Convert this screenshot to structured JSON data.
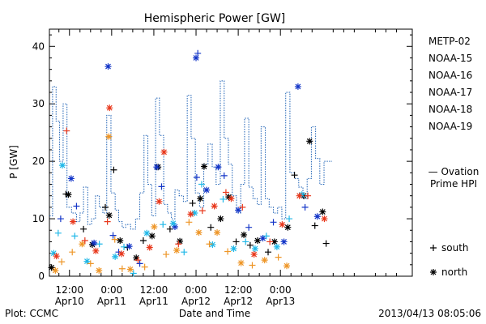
{
  "chart_data": {
    "type": "scatter",
    "title": "Hemispheric Power [GW]",
    "ylabel": "P [GW]",
    "xlabel": "Date and Time",
    "ylim": [
      0,
      43
    ],
    "yticks": [
      0,
      10,
      20,
      30,
      40
    ],
    "x_unit": "hours since 2013-04-09 00:00 UT",
    "xlim": [
      6.3,
      109.5
    ],
    "xticks": [
      {
        "x": 12,
        "time": "12:00",
        "date": "Apr10"
      },
      {
        "x": 24,
        "time": "0:00",
        "date": "Apr11"
      },
      {
        "x": 36,
        "time": "12:00",
        "date": "Apr11"
      },
      {
        "x": 48,
        "time": "0:00",
        "date": "Apr12"
      },
      {
        "x": 60,
        "time": "12:00",
        "date": "Apr12"
      },
      {
        "x": 72,
        "time": "0:00",
        "date": "Apr13"
      }
    ],
    "grid": false,
    "legend": {
      "placement": "right",
      "markers": [
        {
          "symbol": "+",
          "label": "south"
        },
        {
          "symbol": "*",
          "label": "north"
        }
      ]
    },
    "series": [
      {
        "name": "METP-02",
        "color": "#000000",
        "points": [
          {
            "x": 6.9,
            "y": 1.5,
            "m": "*"
          },
          {
            "x": 11.0,
            "y": 14.3,
            "m": "+"
          },
          {
            "x": 11.7,
            "y": 14.2,
            "m": "*"
          },
          {
            "x": 16.0,
            "y": 8.2,
            "m": "+"
          },
          {
            "x": 18.5,
            "y": 5.5,
            "m": "*"
          },
          {
            "x": 22.2,
            "y": 12.0,
            "m": "+"
          },
          {
            "x": 23.3,
            "y": 10.6,
            "m": "*"
          },
          {
            "x": 24.6,
            "y": 18.5,
            "m": "+"
          },
          {
            "x": 26.4,
            "y": 6.2,
            "m": "*"
          },
          {
            "x": 28.5,
            "y": 5.0,
            "m": "+"
          },
          {
            "x": 31.0,
            "y": 3.2,
            "m": "*"
          },
          {
            "x": 33.0,
            "y": 6.2,
            "m": "+"
          },
          {
            "x": 35.5,
            "y": 7.0,
            "m": "*"
          },
          {
            "x": 37.2,
            "y": 19.0,
            "m": "*"
          },
          {
            "x": 40.6,
            "y": 8.2,
            "m": "+"
          },
          {
            "x": 43.4,
            "y": 6.1,
            "m": "*"
          },
          {
            "x": 47.0,
            "y": 12.7,
            "m": "+"
          },
          {
            "x": 49.2,
            "y": 13.5,
            "m": "*"
          },
          {
            "x": 50.3,
            "y": 19.1,
            "m": "*"
          },
          {
            "x": 52.2,
            "y": 8.5,
            "m": "+"
          },
          {
            "x": 55.0,
            "y": 10.0,
            "m": "*"
          },
          {
            "x": 57.3,
            "y": 13.8,
            "m": "*"
          },
          {
            "x": 59.4,
            "y": 6.0,
            "m": "+"
          },
          {
            "x": 61.6,
            "y": 7.2,
            "m": "*"
          },
          {
            "x": 63.4,
            "y": 5.4,
            "m": "+"
          },
          {
            "x": 65.5,
            "y": 6.2,
            "m": "*"
          },
          {
            "x": 68.5,
            "y": 4.2,
            "m": "+"
          },
          {
            "x": 70.3,
            "y": 6.0,
            "m": "*"
          },
          {
            "x": 74.1,
            "y": 8.5,
            "m": "*"
          },
          {
            "x": 76.0,
            "y": 17.6,
            "m": "+"
          },
          {
            "x": 78.6,
            "y": 14.0,
            "m": "*"
          },
          {
            "x": 80.3,
            "y": 23.5,
            "m": "*"
          },
          {
            "x": 81.8,
            "y": 8.8,
            "m": "+"
          },
          {
            "x": 84.0,
            "y": 11.2,
            "m": "*"
          },
          {
            "x": 85.0,
            "y": 5.7,
            "m": "+"
          }
        ]
      },
      {
        "name": "NOAA-15",
        "color": "#1436c8",
        "points": [
          {
            "x": 9.5,
            "y": 10.0,
            "m": "+"
          },
          {
            "x": 12.5,
            "y": 17.0,
            "m": "*"
          },
          {
            "x": 14.0,
            "y": 12.2,
            "m": "+"
          },
          {
            "x": 19.0,
            "y": 5.8,
            "m": "*"
          },
          {
            "x": 23.0,
            "y": 36.5,
            "m": "*"
          },
          {
            "x": 24.4,
            "y": 7.1,
            "m": "+"
          },
          {
            "x": 26.0,
            "y": 4.2,
            "m": "+"
          },
          {
            "x": 29.0,
            "y": 5.2,
            "m": "*"
          },
          {
            "x": 32.0,
            "y": 2.2,
            "m": "+"
          },
          {
            "x": 36.8,
            "y": 19.0,
            "m": "*"
          },
          {
            "x": 38.2,
            "y": 15.6,
            "m": "+"
          },
          {
            "x": 42.0,
            "y": 8.6,
            "m": "*"
          },
          {
            "x": 48.0,
            "y": 38.0,
            "m": "*"
          },
          {
            "x": 48.5,
            "y": 38.8,
            "m": "+"
          },
          {
            "x": 48.2,
            "y": 17.2,
            "m": "+"
          },
          {
            "x": 51.0,
            "y": 15.0,
            "m": "*"
          },
          {
            "x": 54.3,
            "y": 19.0,
            "m": "*"
          },
          {
            "x": 56.0,
            "y": 17.5,
            "m": "+"
          },
          {
            "x": 60.0,
            "y": 11.5,
            "m": "*"
          },
          {
            "x": 63.0,
            "y": 8.5,
            "m": "+"
          },
          {
            "x": 67.0,
            "y": 6.6,
            "m": "*"
          },
          {
            "x": 70.0,
            "y": 9.4,
            "m": "+"
          },
          {
            "x": 73.0,
            "y": 6.0,
            "m": "*"
          },
          {
            "x": 77.0,
            "y": 33.0,
            "m": "*"
          },
          {
            "x": 79.0,
            "y": 12.0,
            "m": "+"
          },
          {
            "x": 82.5,
            "y": 10.4,
            "m": "*"
          }
        ]
      },
      {
        "name": "NOAA-16",
        "color": "#20b8e8",
        "points": [
          {
            "x": 7.5,
            "y": 4.0,
            "m": "*"
          },
          {
            "x": 8.8,
            "y": 7.5,
            "m": "+"
          },
          {
            "x": 10.0,
            "y": 19.3,
            "m": "*"
          },
          {
            "x": 13.5,
            "y": 7.0,
            "m": "+"
          },
          {
            "x": 17.0,
            "y": 2.6,
            "m": "*"
          },
          {
            "x": 20.5,
            "y": 5.6,
            "m": "+"
          },
          {
            "x": 25.0,
            "y": 3.4,
            "m": "*"
          },
          {
            "x": 27.5,
            "y": 5.1,
            "m": "+"
          },
          {
            "x": 30.2,
            "y": 0.5,
            "m": "+"
          },
          {
            "x": 34.0,
            "y": 7.5,
            "m": "*"
          },
          {
            "x": 38.6,
            "y": 9.0,
            "m": "+"
          },
          {
            "x": 41.5,
            "y": 9.2,
            "m": "*"
          },
          {
            "x": 44.6,
            "y": 4.2,
            "m": "+"
          },
          {
            "x": 47.6,
            "y": 11.0,
            "m": "*"
          },
          {
            "x": 49.6,
            "y": 16.0,
            "m": "+"
          },
          {
            "x": 52.7,
            "y": 5.5,
            "m": "*"
          },
          {
            "x": 55.7,
            "y": 13.4,
            "m": "+"
          },
          {
            "x": 58.7,
            "y": 4.8,
            "m": "*"
          },
          {
            "x": 62.1,
            "y": 6.0,
            "m": "+"
          },
          {
            "x": 64.8,
            "y": 4.8,
            "m": "*"
          },
          {
            "x": 68.0,
            "y": 7.0,
            "m": "+"
          },
          {
            "x": 71.0,
            "y": 5.1,
            "m": "*"
          },
          {
            "x": 74.5,
            "y": 10.0,
            "m": "+"
          },
          {
            "x": 78.1,
            "y": 14.2,
            "m": "*"
          }
        ]
      },
      {
        "name": "NOAA-17",
        "color": "#34d45c",
        "points": []
      },
      {
        "name": "NOAA-18",
        "color": "#ee9628",
        "points": [
          {
            "x": 8.0,
            "y": 1.0,
            "m": "*"
          },
          {
            "x": 9.8,
            "y": 2.5,
            "m": "+"
          },
          {
            "x": 12.8,
            "y": 4.2,
            "m": "+"
          },
          {
            "x": 15.6,
            "y": 5.6,
            "m": "*"
          },
          {
            "x": 18.0,
            "y": 2.2,
            "m": "+"
          },
          {
            "x": 20.4,
            "y": 1.0,
            "m": "*"
          },
          {
            "x": 23.2,
            "y": 24.3,
            "m": "*"
          },
          {
            "x": 24.9,
            "y": 6.4,
            "m": "+"
          },
          {
            "x": 27.0,
            "y": 1.3,
            "m": "+"
          },
          {
            "x": 29.3,
            "y": 1.2,
            "m": "*"
          },
          {
            "x": 33.4,
            "y": 1.6,
            "m": "+"
          },
          {
            "x": 36.1,
            "y": 8.6,
            "m": "*"
          },
          {
            "x": 39.5,
            "y": 3.8,
            "m": "+"
          },
          {
            "x": 42.5,
            "y": 4.5,
            "m": "*"
          },
          {
            "x": 46.0,
            "y": 9.4,
            "m": "+"
          },
          {
            "x": 48.8,
            "y": 7.6,
            "m": "*"
          },
          {
            "x": 51.8,
            "y": 5.6,
            "m": "+"
          },
          {
            "x": 54.0,
            "y": 7.6,
            "m": "*"
          },
          {
            "x": 57.0,
            "y": 4.3,
            "m": "+"
          },
          {
            "x": 60.8,
            "y": 2.3,
            "m": "*"
          },
          {
            "x": 64.0,
            "y": 1.9,
            "m": "+"
          },
          {
            "x": 67.5,
            "y": 2.8,
            "m": "*"
          },
          {
            "x": 71.4,
            "y": 3.3,
            "m": "+"
          },
          {
            "x": 73.8,
            "y": 1.8,
            "m": "*"
          }
        ]
      },
      {
        "name": "NOAA-19",
        "color": "#e8381c",
        "points": [
          {
            "x": 8.3,
            "y": 3.5,
            "m": "*"
          },
          {
            "x": 11.2,
            "y": 25.3,
            "m": "+"
          },
          {
            "x": 13.0,
            "y": 9.5,
            "m": "*"
          },
          {
            "x": 16.4,
            "y": 6.2,
            "m": "+"
          },
          {
            "x": 19.5,
            "y": 4.4,
            "m": "*"
          },
          {
            "x": 22.8,
            "y": 9.5,
            "m": "+"
          },
          {
            "x": 23.4,
            "y": 29.3,
            "m": "*"
          },
          {
            "x": 26.8,
            "y": 3.9,
            "m": "*"
          },
          {
            "x": 31.5,
            "y": 2.8,
            "m": "+"
          },
          {
            "x": 34.8,
            "y": 5.0,
            "m": "*"
          },
          {
            "x": 37.5,
            "y": 13.0,
            "m": "*"
          },
          {
            "x": 38.9,
            "y": 21.6,
            "m": "*"
          },
          {
            "x": 43.0,
            "y": 5.6,
            "m": "+"
          },
          {
            "x": 46.5,
            "y": 10.8,
            "m": "*"
          },
          {
            "x": 49.8,
            "y": 11.4,
            "m": "+"
          },
          {
            "x": 53.2,
            "y": 12.2,
            "m": "*"
          },
          {
            "x": 56.5,
            "y": 14.6,
            "m": "+"
          },
          {
            "x": 58.0,
            "y": 13.5,
            "m": "*"
          },
          {
            "x": 61.2,
            "y": 12.0,
            "m": "+"
          },
          {
            "x": 64.5,
            "y": 3.8,
            "m": "*"
          },
          {
            "x": 69.0,
            "y": 6.0,
            "m": "+"
          },
          {
            "x": 72.5,
            "y": 9.0,
            "m": "*"
          },
          {
            "x": 77.4,
            "y": 14.0,
            "m": "*"
          },
          {
            "x": 79.8,
            "y": 14.0,
            "m": "+"
          },
          {
            "x": 84.5,
            "y": 10.0,
            "m": "*"
          }
        ]
      }
    ],
    "ovation": {
      "name": "Ovation Prime HPI",
      "label_line1": "— Ovation",
      "label_line2": "Prime HPI",
      "color": "#1a5fb4",
      "steps": [
        [
          6.3,
          10.5
        ],
        [
          7.2,
          33.0
        ],
        [
          8.2,
          27.0
        ],
        [
          9.2,
          20.0
        ],
        [
          10.2,
          30.0
        ],
        [
          11.3,
          12.0
        ],
        [
          12.6,
          11.0
        ],
        [
          14.0,
          9.5
        ],
        [
          15.0,
          11.0
        ],
        [
          16.0,
          15.5
        ],
        [
          17.2,
          9.0
        ],
        [
          18.3,
          10.0
        ],
        [
          19.4,
          14.0
        ],
        [
          20.5,
          12.0
        ],
        [
          21.5,
          11.0
        ],
        [
          22.6,
          28.0
        ],
        [
          23.8,
          14.5
        ],
        [
          25.0,
          11.5
        ],
        [
          26.0,
          9.5
        ],
        [
          27.0,
          8.5
        ],
        [
          28.0,
          9.0
        ],
        [
          29.4,
          8.2
        ],
        [
          30.8,
          10.0
        ],
        [
          32.0,
          14.5
        ],
        [
          33.2,
          24.5
        ],
        [
          34.3,
          16.0
        ],
        [
          35.4,
          10.5
        ],
        [
          36.5,
          31.0
        ],
        [
          37.6,
          24.5
        ],
        [
          38.8,
          12.5
        ],
        [
          39.9,
          11.0
        ],
        [
          41.0,
          10.0
        ],
        [
          42.0,
          15.0
        ],
        [
          43.2,
          14.0
        ],
        [
          44.4,
          13.0
        ],
        [
          45.5,
          31.5
        ],
        [
          46.6,
          24.0
        ],
        [
          47.8,
          14.5
        ],
        [
          49.0,
          12.0
        ],
        [
          50.2,
          19.5
        ],
        [
          51.4,
          23.0
        ],
        [
          52.6,
          19.0
        ],
        [
          53.7,
          16.0
        ],
        [
          54.9,
          34.0
        ],
        [
          56.0,
          24.0
        ],
        [
          57.2,
          19.5
        ],
        [
          58.3,
          14.0
        ],
        [
          59.5,
          11.0
        ],
        [
          60.7,
          16.0
        ],
        [
          61.8,
          27.5
        ],
        [
          63.0,
          15.5
        ],
        [
          64.2,
          13.5
        ],
        [
          65.4,
          12.5
        ],
        [
          66.5,
          26.0
        ],
        [
          67.7,
          13.5
        ],
        [
          68.8,
          12.0
        ],
        [
          70.0,
          11.0
        ],
        [
          71.2,
          12.0
        ],
        [
          72.4,
          10.0
        ],
        [
          73.5,
          32.0
        ],
        [
          74.7,
          18.0
        ],
        [
          76.0,
          17.0
        ],
        [
          77.2,
          15.5
        ],
        [
          78.4,
          13.5
        ],
        [
          79.6,
          17.0
        ],
        [
          80.8,
          26.0
        ],
        [
          82.0,
          20.5
        ],
        [
          83.2,
          16.0
        ],
        [
          84.4,
          20.0
        ],
        [
          85.5,
          20.0
        ]
      ]
    }
  },
  "footer": {
    "plot_credit": "Plot: CCMC",
    "timestamp": "2013/04/13 08:05:06"
  }
}
